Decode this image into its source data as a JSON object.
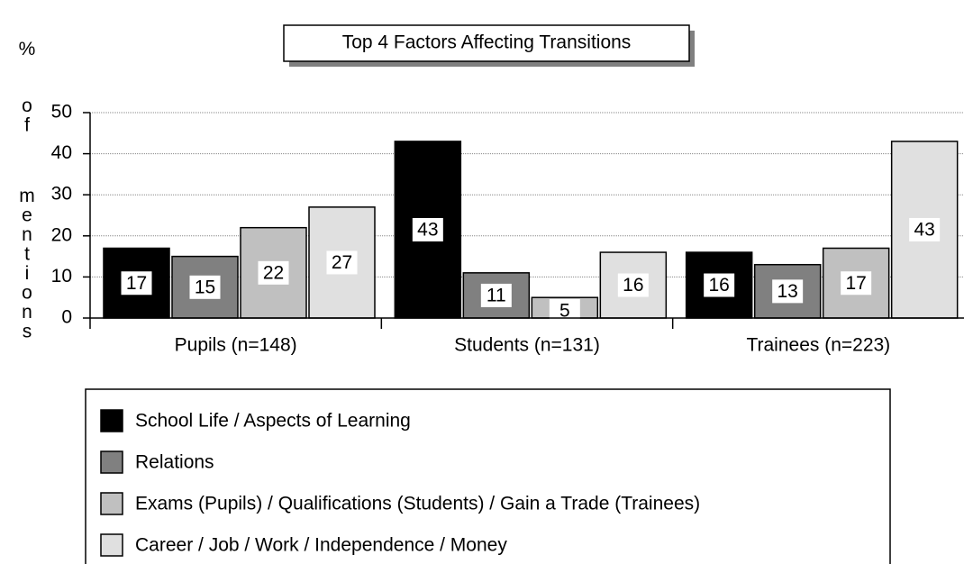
{
  "chart_data": {
    "type": "bar",
    "title": "Top 4 Factors Affecting Transitions",
    "y_label": "% of mentions",
    "categories": [
      "Pupils (n=148)",
      "Students (n=131)",
      "Trainees (n=223)"
    ],
    "series": [
      {
        "name": "School Life / Aspects of Learning",
        "color": "#000000",
        "values": [
          17,
          43,
          16
        ]
      },
      {
        "name": "Relations",
        "color": "#808080",
        "values": [
          15,
          11,
          13
        ]
      },
      {
        "name": "Exams (Pupils) / Qualifications (Students) / Gain a Trade (Trainees)",
        "color": "#c0c0c0",
        "values": [
          22,
          5,
          17
        ]
      },
      {
        "name": "Career / Job / Work / Independence / Money",
        "color": "#e0e0e0",
        "values": [
          27,
          16,
          43
        ]
      }
    ],
    "ylim": [
      0,
      50
    ],
    "yticks": [
      0,
      10,
      20,
      30,
      40,
      50
    ],
    "grid": true,
    "legend": "bottom"
  }
}
